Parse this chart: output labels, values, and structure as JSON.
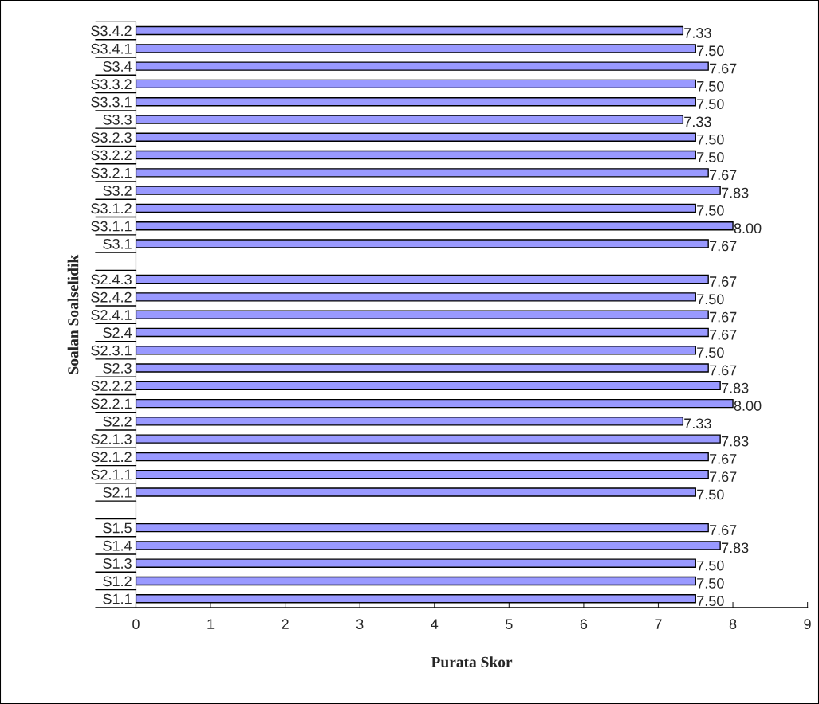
{
  "chart_data": {
    "type": "bar",
    "orientation": "horizontal",
    "xlabel": "Purata Skor",
    "ylabel": "Soalan Soalselidik",
    "categories": [
      "S3.4.2",
      "S3.4.1",
      "S3.4",
      "S3.3.2",
      "S3.3.1",
      "S3.3",
      "S3.2.3",
      "S3.2.2",
      "S3.2.1",
      "S3.2",
      "S3.1.2",
      "S3.1.1",
      "S3.1",
      null,
      "S2.4.3",
      "S2.4.2",
      "S2.4.1",
      "S2.4",
      "S2.3.1",
      "S2.3",
      "S2.2.2",
      "S2.2.1",
      "S2.2",
      "S2.1.3",
      "S2.1.2",
      "S2.1.1",
      "S2.1",
      null,
      "S1.5",
      "S1.4",
      "S1.3",
      "S1.2",
      "S1.1"
    ],
    "values": [
      7.33,
      7.5,
      7.67,
      7.5,
      7.5,
      7.33,
      7.5,
      7.5,
      7.67,
      7.83,
      7.5,
      8.0,
      7.67,
      null,
      7.67,
      7.5,
      7.67,
      7.67,
      7.5,
      7.67,
      7.83,
      8.0,
      7.33,
      7.83,
      7.67,
      7.67,
      7.5,
      null,
      7.67,
      7.83,
      7.5,
      7.5,
      7.5
    ],
    "value_labels": [
      "7.33",
      "7.50",
      "7.67",
      "7.50",
      "7.50",
      "7.33",
      "7.50",
      "7.50",
      "7.67",
      "7.83",
      "7.50",
      "8.00",
      "7.67",
      null,
      "7.67",
      "7.50",
      "7.67",
      "7.67",
      "7.50",
      "7.67",
      "7.83",
      "8.00",
      "7.33",
      "7.83",
      "7.67",
      "7.67",
      "7.50",
      null,
      "7.67",
      "7.83",
      "7.50",
      "7.50",
      "7.50"
    ],
    "color": "#9999ff",
    "xlim": [
      0,
      9
    ],
    "xticks": [
      0,
      1,
      2,
      3,
      4,
      5,
      6,
      7,
      8,
      9
    ],
    "grid": false,
    "legend": false
  }
}
